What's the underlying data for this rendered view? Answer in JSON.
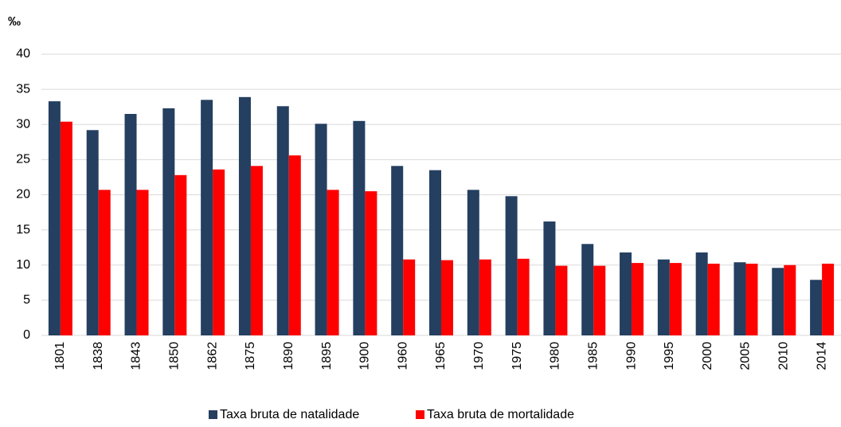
{
  "chart_data": {
    "type": "bar",
    "ylabel": "‰",
    "categories": [
      "1801",
      "1838",
      "1843",
      "1850",
      "1862",
      "1875",
      "1890",
      "1895",
      "1900",
      "1960",
      "1965",
      "1970",
      "1975",
      "1980",
      "1985",
      "1990",
      "1995",
      "2000",
      "2005",
      "2010",
      "2014"
    ],
    "series": [
      {
        "name": "Taxa bruta de natalidade",
        "color": "#243f60",
        "values": [
          33.3,
          29.2,
          31.5,
          32.3,
          33.5,
          33.9,
          32.6,
          30.1,
          30.5,
          24.1,
          23.5,
          20.7,
          19.8,
          16.2,
          13.0,
          11.8,
          10.8,
          11.8,
          10.4,
          9.6,
          7.9
        ]
      },
      {
        "name": "Taxa bruta de mortalidade",
        "color": "#ff0000",
        "values": [
          30.4,
          20.7,
          20.7,
          22.8,
          23.6,
          24.1,
          25.6,
          20.7,
          20.5,
          10.8,
          10.7,
          10.8,
          10.9,
          9.9,
          9.9,
          10.3,
          10.3,
          10.2,
          10.2,
          10.0,
          10.2
        ]
      }
    ],
    "ylim": [
      0,
      40
    ],
    "yticks": [
      0,
      5,
      10,
      15,
      20,
      25,
      30,
      35,
      40
    ],
    "grid": true,
    "legend": "bottom"
  }
}
